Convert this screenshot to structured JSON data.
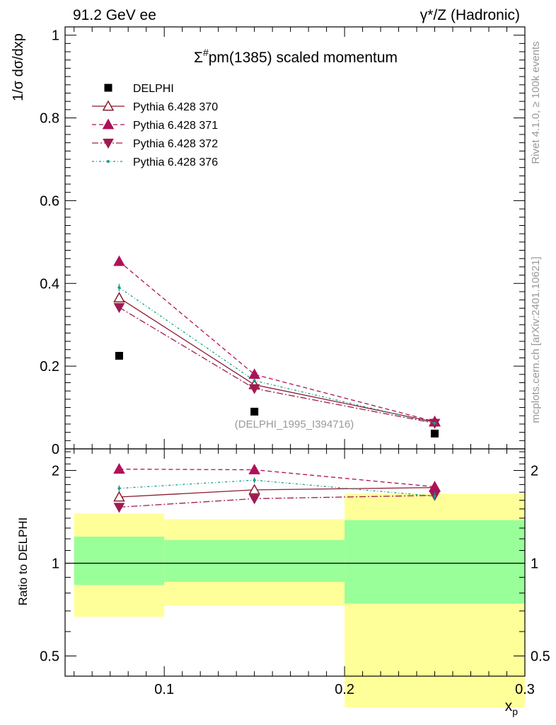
{
  "header": {
    "left": "91.2 GeV ee",
    "right": "γ*/Z (Hadronic)"
  },
  "side_labels": {
    "rivet": "Rivet 4.1.0, ≥ 100k events",
    "mcplots": "mcplots.cern.ch [arXiv:2401.10621]"
  },
  "colors": {
    "data": "#000000",
    "p370": "#8b1a2e",
    "p371": "#b0105a",
    "p372": "#a01a50",
    "p376": "#169a8a",
    "band_inner": "#99ff99",
    "band_outer": "#ffff99"
  },
  "chart_data": [
    {
      "type": "scatter",
      "title": "Σ#pm(1385) scaled momentum",
      "title_main": "pm(1385) scaled momentum",
      "ylabel": "1/σ  dσ/dxp",
      "xlabel": "",
      "xlim": [
        0.045,
        0.3
      ],
      "ylim": [
        0,
        1.02
      ],
      "yticks": [
        0,
        0.2,
        0.4,
        0.6,
        0.8,
        1
      ],
      "ytick_labels": [
        "0",
        "0.2",
        "0.4",
        "0.6",
        "0.8",
        "1"
      ],
      "watermark": "(DELPHI_1995_I394716)",
      "x": [
        0.075,
        0.15,
        0.25
      ],
      "series": [
        {
          "key": "data",
          "name": "DELPHI",
          "values": [
            0.225,
            0.09,
            0.037
          ],
          "marker": "square"
        },
        {
          "key": "p370",
          "name": "Pythia 6.428 370",
          "values": [
            0.365,
            0.155,
            0.065
          ],
          "err": [
            0.008,
            0.005,
            0.003
          ],
          "marker": "triangle-open",
          "dash": ""
        },
        {
          "key": "p371",
          "name": "Pythia 6.428 371",
          "values": [
            0.453,
            0.18,
            0.066
          ],
          "err": [
            0.009,
            0.005,
            0.003
          ],
          "marker": "triangle",
          "dash": "6,4"
        },
        {
          "key": "p372",
          "name": "Pythia 6.428 372",
          "values": [
            0.342,
            0.146,
            0.062
          ],
          "err": [
            0.008,
            0.005,
            0.003
          ],
          "marker": "triangle-down",
          "dash": "9,3,2,3"
        },
        {
          "key": "p376",
          "name": "Pythia 6.428 376",
          "values": [
            0.39,
            0.165,
            0.062
          ],
          "err": [
            0.009,
            0.005,
            0.003
          ],
          "marker": "dot",
          "dash": "3,3,1,3"
        }
      ]
    },
    {
      "type": "line",
      "ylabel": "Ratio to DELPHI",
      "xlabel": "xp",
      "xlim": [
        0.045,
        0.3
      ],
      "ylim": [
        0.43,
        2.35
      ],
      "xticks": [
        0.1,
        0.2,
        0.3
      ],
      "xtick_labels": [
        "0.1",
        "0.2",
        "0.3"
      ],
      "yticks": [
        0.5,
        1,
        2
      ],
      "ytick_labels": [
        "0.5",
        "1",
        "2"
      ],
      "bands": [
        {
          "x": [
            0.05,
            0.1
          ],
          "inner": [
            0.85,
            1.22
          ],
          "outer": [
            0.67,
            1.45
          ]
        },
        {
          "x": [
            0.1,
            0.2
          ],
          "inner": [
            0.87,
            1.19
          ],
          "outer": [
            0.73,
            1.39
          ]
        },
        {
          "x": [
            0.2,
            0.3
          ],
          "inner": [
            0.74,
            1.38
          ],
          "outer": [
            0.34,
            1.68
          ]
        }
      ],
      "x": [
        0.075,
        0.15,
        0.25
      ],
      "series": [
        {
          "key": "p370",
          "values": [
            1.64,
            1.73,
            1.76
          ],
          "err": [
            0.04,
            0.04,
            0.04
          ],
          "marker": "triangle-open",
          "dash": ""
        },
        {
          "key": "p371",
          "values": [
            2.02,
            2.01,
            1.77
          ],
          "err": [
            0.03,
            0.03,
            0.05
          ],
          "marker": "triangle",
          "dash": "6,4"
        },
        {
          "key": "p372",
          "values": [
            1.52,
            1.62,
            1.66
          ],
          "err": [
            0.03,
            0.03,
            0.05
          ],
          "marker": "triangle-down",
          "dash": "9,3,2,3"
        },
        {
          "key": "p376",
          "values": [
            1.75,
            1.86,
            1.65
          ],
          "err": [
            0.04,
            0.04,
            0.05
          ],
          "marker": "dot",
          "dash": "3,3,1,3"
        }
      ]
    }
  ]
}
